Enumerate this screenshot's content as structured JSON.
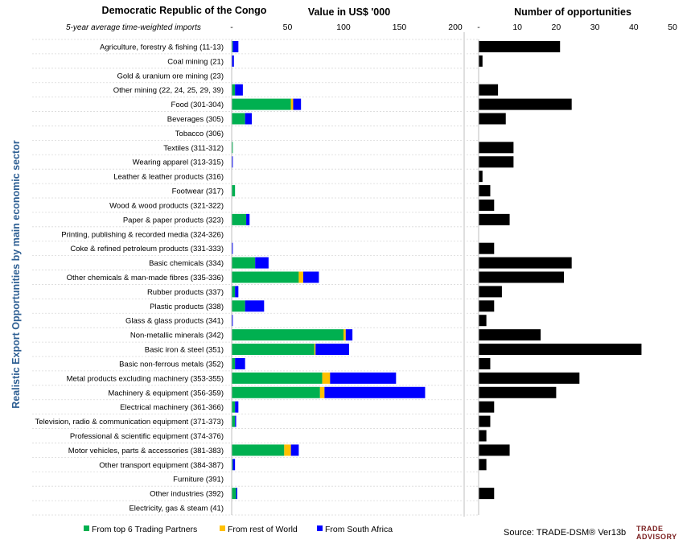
{
  "chart_data": {
    "type": "bar",
    "title": "Democratic Republic of the Congo",
    "subtitle": "5-year average time-weighted imports",
    "ylabel": "Realistic Export Opportunities by main economic sector",
    "source": "Source: TRADE-DSM® Ver13b",
    "logo": [
      "TRADE",
      "ADVISORY"
    ],
    "colors": {
      "top6": "#00b050",
      "rest": "#ffc000",
      "sa": "#0000ff",
      "opps": "#000000"
    },
    "categories": [
      "Agriculture, forestry & fishing (11-13)",
      "Coal mining (21)",
      "Gold & uranium ore mining (23)",
      "Other mining (22, 24, 25, 29, 39)",
      "Food (301-304)",
      "Beverages (305)",
      "Tobacco (306)",
      "Textiles (311-312)",
      "Wearing apparel (313-315)",
      "Leather & leather products (316)",
      "Footwear (317)",
      "Wood & wood products (321-322)",
      "Paper & paper products (323)",
      "Printing, publishing & recorded media (324-326)",
      "Coke & refined petroleum products (331-333)",
      "Basic chemicals (334)",
      "Other chemicals & man-made fibres (335-336)",
      "Rubber products (337)",
      "Plastic products (338)",
      "Glass & glass products (341)",
      "Non-metallic minerals (342)",
      "Basic iron & steel (351)",
      "Basic non-ferrous metals (352)",
      "Metal products excluding machinery (353-355)",
      "Machinery & equipment (356-359)",
      "Electrical machinery (361-366)",
      "Television, radio & communication equipment (371-373)",
      "Professional & scientific equipment (374-376)",
      "Motor vehicles, parts & accessories (381-383)",
      "Other transport equipment (384-387)",
      "Furniture (391)",
      "Other industries (392)",
      "Electricity, gas & steam (41)"
    ],
    "value_panel": {
      "xlabel": "Value in US$ '000",
      "xlim": [
        0,
        200
      ],
      "ticks": [
        "-",
        "50",
        "100",
        "150",
        "200"
      ],
      "series": [
        {
          "name": "From top 6 Trading Partners",
          "color": "#00b050",
          "values": [
            1,
            0,
            0,
            3,
            53,
            12,
            0,
            1,
            0,
            0,
            3,
            0,
            13,
            0,
            0,
            21,
            60,
            3,
            12,
            0,
            100,
            74,
            3,
            81,
            79,
            3,
            3,
            0,
            47,
            1,
            0,
            4,
            0
          ]
        },
        {
          "name": "From rest of World",
          "color": "#ffc000",
          "values": [
            0,
            0,
            0,
            0,
            2,
            0,
            0,
            0,
            0,
            0,
            0,
            0,
            0,
            0,
            0,
            0,
            4,
            0,
            0,
            0,
            2,
            1,
            0,
            7,
            4,
            0,
            0,
            0,
            6,
            0,
            0,
            0,
            0
          ]
        },
        {
          "name": "From South Africa",
          "color": "#0000ff",
          "values": [
            5,
            2,
            0,
            7,
            7,
            6,
            0,
            0,
            1,
            0,
            0,
            0,
            3,
            0,
            1,
            12,
            14,
            3,
            17,
            1,
            6,
            30,
            9,
            59,
            90,
            3,
            1,
            0,
            7,
            2,
            0,
            1,
            0
          ]
        }
      ]
    },
    "opps_panel": {
      "xlabel": "Number of opportunities",
      "xlim": [
        0,
        50
      ],
      "ticks": [
        "-",
        "10",
        "20",
        "30",
        "40",
        "50"
      ],
      "values": [
        21,
        1,
        0,
        5,
        24,
        7,
        0,
        9,
        9,
        1,
        3,
        4,
        8,
        0,
        4,
        24,
        22,
        6,
        4,
        2,
        16,
        42,
        3,
        26,
        20,
        4,
        3,
        2,
        8,
        2,
        0,
        4,
        0
      ]
    },
    "legend": [
      {
        "label": "From top 6 Trading Partners",
        "color": "#00b050"
      },
      {
        "label": "From rest of World",
        "color": "#ffc000"
      },
      {
        "label": "From South Africa",
        "color": "#0000ff"
      }
    ]
  }
}
